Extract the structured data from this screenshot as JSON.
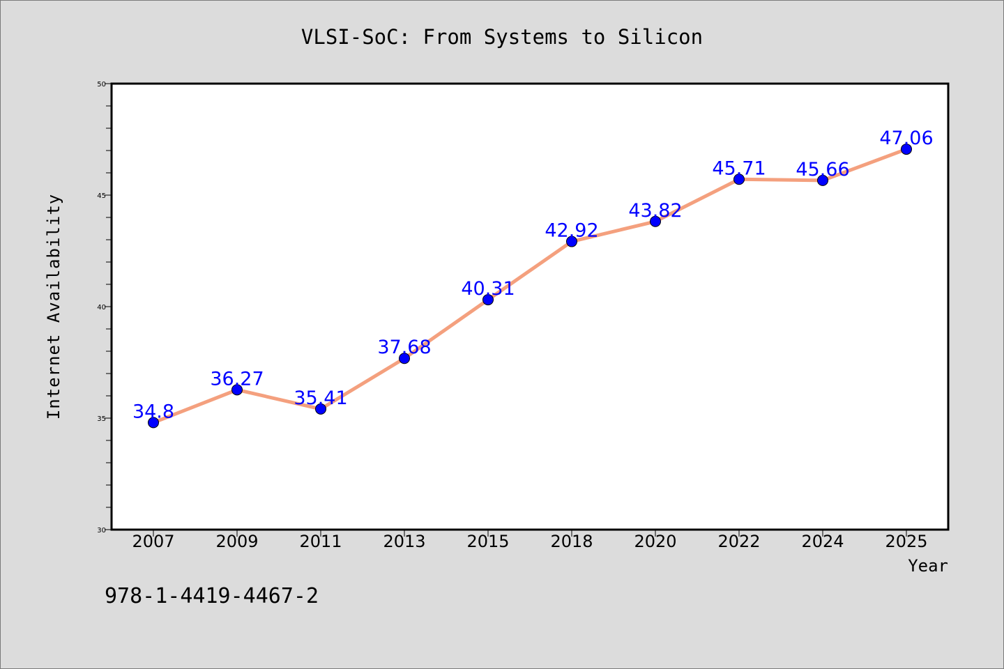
{
  "chart_data": {
    "type": "line",
    "title": "VLSI-SoC: From Systems to Silicon",
    "xlabel": "Year",
    "ylabel": "Internet Availability",
    "categories": [
      "2007",
      "2009",
      "2011",
      "2013",
      "2015",
      "2018",
      "2020",
      "2022",
      "2024",
      "2025"
    ],
    "values": [
      34.8,
      36.27,
      35.41,
      37.68,
      40.31,
      42.92,
      43.82,
      45.71,
      45.66,
      47.06
    ],
    "data_labels": [
      "34.8",
      "36.27",
      "35.41",
      "37.68",
      "40.31",
      "42.92",
      "43.82",
      "45.71",
      "45.66",
      "47.06"
    ],
    "ylim": [
      30,
      50
    ],
    "y_major_ticks": [
      30,
      35,
      40,
      45,
      50
    ],
    "y_minor_step": 1,
    "grid": false,
    "line_color": "#f4a07e",
    "marker_color": "#0000ff",
    "label_color": "#0000ff"
  },
  "footnote": "978-1-4419-4467-2"
}
